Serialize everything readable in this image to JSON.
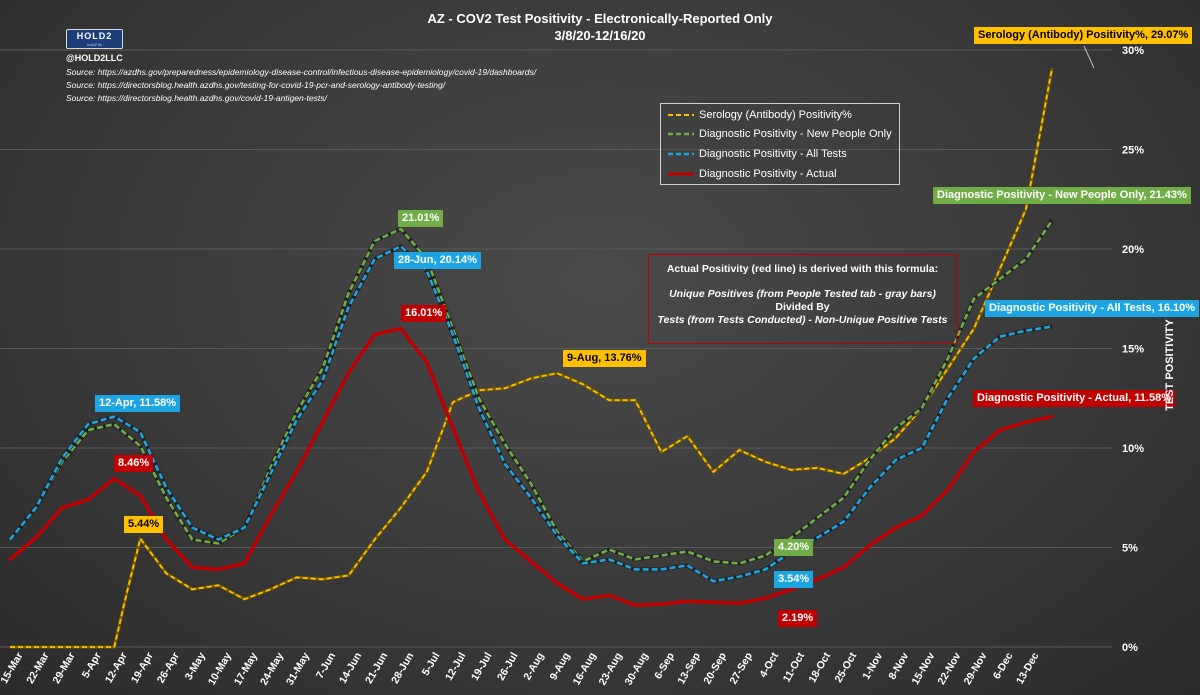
{
  "header": {
    "title_line1": "AZ - COV2 Test Positivity - Electronically-Reported Only",
    "title_line2": "3/8/20-12/16/20",
    "logo_text": "HOLD2",
    "logo_subtext": "hold2 llc",
    "handle": "@HOLD2LLC",
    "sources": [
      "Source: https://azdhs.gov/preparedness/epidemiology-disease-control/infectious-disease-epidemiology/covid-19/dashboards/",
      "Source: https://directorsblog.health.azdhs.gov/testing-for-covid-19-pcr-and-serology-antibody-testing/",
      "Source: https://directorsblog.health.azdhs.gov/covid-19-antigen-tests/"
    ]
  },
  "legend": {
    "items": [
      {
        "label": "Serology (Antibody) Positivity%",
        "color": "#ffc000",
        "dash": true
      },
      {
        "label": "Diagnostic Positivity - New People Only",
        "color": "#70ad47",
        "dash": true
      },
      {
        "label": "Diagnostic Positivity - All Tests",
        "color": "#1da4e2",
        "dash": true
      },
      {
        "label": "Diagnostic Positivity - Actual",
        "color": "#c00000",
        "dash": false
      }
    ]
  },
  "formula": {
    "heading": "Actual Positivity (red line) is derived with this formula:",
    "line1": "Unique Positives (from People Tested tab - gray bars)",
    "line2": "Divided By",
    "line3": "Tests (from Tests Conducted) - Non-Unique Positive Tests"
  },
  "callouts": {
    "serology_end": "Serology (Antibody) Positivity%, 29.07%",
    "new_people_end": "Diagnostic Positivity - New People Only, 21.43%",
    "all_tests_end": "Diagnostic Positivity - All Tests, 16.10%",
    "actual_end": "Diagnostic Positivity - Actual, 11.58%",
    "apr12": "12-Apr, 11.58%",
    "red_peak_apr": "8.46%",
    "serology_apr": "5.44%",
    "green_peak_jun": "21.01%",
    "blue_peak_jun": "28-Jun, 20.14%",
    "red_peak_jun": "16.01%",
    "serology_aug": "9-Aug, 13.76%",
    "green_sep": "4.20%",
    "blue_sep": "3.54%",
    "red_sep": "2.19%"
  },
  "colors": {
    "serology": "#ffc000",
    "new_people": "#70ad47",
    "all_tests": "#1da4e2",
    "actual": "#c00000",
    "grid": "#5a5a5a"
  },
  "chart_data": {
    "type": "line",
    "title": "AZ - COV2 Test Positivity - Electronically-Reported Only",
    "subtitle": "3/8/20-12/16/20",
    "xlabel": "",
    "ylabel": "TEST POSITIVITY",
    "ylim": [
      0,
      30
    ],
    "y_ticks": [
      0,
      5,
      10,
      15,
      20,
      25,
      30
    ],
    "y_tick_labels": [
      "0%",
      "5%",
      "10%",
      "15%",
      "20%",
      "25%",
      "30%"
    ],
    "grid": true,
    "legend_position": "top-center",
    "x_ticks": [
      "15-Mar",
      "22-Mar",
      "29-Mar",
      "5-Apr",
      "12-Apr",
      "19-Apr",
      "26-Apr",
      "3-May",
      "10-May",
      "17-May",
      "24-May",
      "31-May",
      "7-Jun",
      "14-Jun",
      "21-Jun",
      "28-Jun",
      "5-Jul",
      "12-Jul",
      "19-Jul",
      "26-Jul",
      "2-Aug",
      "9-Aug",
      "16-Aug",
      "23-Aug",
      "30-Aug",
      "6-Sep",
      "13-Sep",
      "20-Sep",
      "27-Sep",
      "4-Oct",
      "11-Oct",
      "18-Oct",
      "25-Oct",
      "1-Nov",
      "8-Nov",
      "15-Nov",
      "22-Nov",
      "29-Nov",
      "6-Dec",
      "13-Dec"
    ],
    "series": [
      {
        "name": "Serology (Antibody) Positivity%",
        "color": "#ffc000",
        "style": "dashed",
        "points": [
          [
            0,
            0
          ],
          [
            1,
            0
          ],
          [
            2,
            0
          ],
          [
            3,
            0
          ],
          [
            4,
            0
          ],
          [
            4.5,
            2.8
          ],
          [
            5,
            5.44
          ],
          [
            6,
            3.7
          ],
          [
            7,
            2.9
          ],
          [
            8,
            3.1
          ],
          [
            9,
            2.4
          ],
          [
            10,
            2.9
          ],
          [
            11,
            3.5
          ],
          [
            12,
            3.4
          ],
          [
            13,
            3.6
          ],
          [
            14,
            5.4
          ],
          [
            15,
            7.0
          ],
          [
            16,
            8.8
          ],
          [
            17,
            12.3
          ],
          [
            18,
            12.9
          ],
          [
            19,
            13.0
          ],
          [
            20,
            13.5
          ],
          [
            21,
            13.76
          ],
          [
            22,
            13.2
          ],
          [
            23,
            12.4
          ],
          [
            24,
            12.4
          ],
          [
            25,
            9.8
          ],
          [
            26,
            10.6
          ],
          [
            27,
            8.8
          ],
          [
            28,
            9.9
          ],
          [
            29,
            9.3
          ],
          [
            30,
            8.9
          ],
          [
            31,
            9.0
          ],
          [
            32,
            8.7
          ],
          [
            33,
            9.5
          ],
          [
            34,
            10.5
          ],
          [
            35,
            12.0
          ],
          [
            36,
            14.0
          ],
          [
            37,
            16.0
          ],
          [
            38,
            19.0
          ],
          [
            39,
            22.0
          ],
          [
            40,
            29.07
          ]
        ]
      },
      {
        "name": "Diagnostic Positivity - New People Only",
        "color": "#70ad47",
        "style": "dashed",
        "points": [
          [
            0,
            5.4
          ],
          [
            1,
            7.0
          ],
          [
            2,
            9.3
          ],
          [
            3,
            10.9
          ],
          [
            4,
            11.2
          ],
          [
            5,
            10.1
          ],
          [
            6,
            7.5
          ],
          [
            7,
            5.4
          ],
          [
            8,
            5.2
          ],
          [
            9,
            6.0
          ],
          [
            10,
            9.0
          ],
          [
            11,
            11.8
          ],
          [
            12,
            14.0
          ],
          [
            13,
            17.8
          ],
          [
            14,
            20.4
          ],
          [
            15,
            21.01
          ],
          [
            16,
            19.5
          ],
          [
            17,
            16.0
          ],
          [
            18,
            12.5
          ],
          [
            19,
            10.2
          ],
          [
            20,
            8.2
          ],
          [
            21,
            5.8
          ],
          [
            22,
            4.3
          ],
          [
            23,
            4.9
          ],
          [
            24,
            4.4
          ],
          [
            25,
            4.6
          ],
          [
            26,
            4.8
          ],
          [
            27,
            4.3
          ],
          [
            28,
            4.2
          ],
          [
            29,
            4.6
          ],
          [
            30,
            5.5
          ],
          [
            31,
            6.5
          ],
          [
            32,
            7.5
          ],
          [
            33,
            9.4
          ],
          [
            34,
            11.0
          ],
          [
            35,
            12.0
          ],
          [
            36,
            14.5
          ],
          [
            37,
            17.5
          ],
          [
            38,
            18.5
          ],
          [
            39,
            19.5
          ],
          [
            40,
            21.43
          ]
        ]
      },
      {
        "name": "Diagnostic Positivity - All Tests",
        "color": "#1da4e2",
        "style": "dashed",
        "points": [
          [
            0,
            5.4
          ],
          [
            1,
            7.0
          ],
          [
            2,
            9.5
          ],
          [
            3,
            11.2
          ],
          [
            4,
            11.58
          ],
          [
            5,
            10.8
          ],
          [
            6,
            8.0
          ],
          [
            7,
            6.0
          ],
          [
            8,
            5.4
          ],
          [
            9,
            6.0
          ],
          [
            10,
            8.7
          ],
          [
            11,
            11.4
          ],
          [
            12,
            13.4
          ],
          [
            13,
            17.1
          ],
          [
            14,
            19.5
          ],
          [
            15,
            20.14
          ],
          [
            16,
            18.9
          ],
          [
            17,
            15.7
          ],
          [
            18,
            12.0
          ],
          [
            19,
            9.2
          ],
          [
            20,
            7.5
          ],
          [
            21,
            5.6
          ],
          [
            22,
            4.2
          ],
          [
            23,
            4.4
          ],
          [
            24,
            3.9
          ],
          [
            25,
            3.9
          ],
          [
            26,
            4.1
          ],
          [
            27,
            3.3
          ],
          [
            28,
            3.54
          ],
          [
            29,
            3.9
          ],
          [
            30,
            4.8
          ],
          [
            31,
            5.5
          ],
          [
            32,
            6.3
          ],
          [
            33,
            8.0
          ],
          [
            34,
            9.4
          ],
          [
            35,
            10.0
          ],
          [
            36,
            12.5
          ],
          [
            37,
            14.5
          ],
          [
            38,
            15.6
          ],
          [
            39,
            15.9
          ],
          [
            40,
            16.1
          ]
        ]
      },
      {
        "name": "Diagnostic Positivity - Actual",
        "color": "#c00000",
        "style": "solid",
        "points": [
          [
            0,
            4.4
          ],
          [
            1,
            5.5
          ],
          [
            2,
            7.0
          ],
          [
            3,
            7.4
          ],
          [
            4,
            8.46
          ],
          [
            5,
            7.6
          ],
          [
            6,
            5.4
          ],
          [
            7,
            4.0
          ],
          [
            8,
            3.9
          ],
          [
            9,
            4.2
          ],
          [
            10,
            6.6
          ],
          [
            11,
            8.8
          ],
          [
            12,
            11.3
          ],
          [
            13,
            13.8
          ],
          [
            14,
            15.7
          ],
          [
            15,
            16.01
          ],
          [
            16,
            14.3
          ],
          [
            17,
            11.0
          ],
          [
            18,
            7.8
          ],
          [
            19,
            5.4
          ],
          [
            20,
            4.3
          ],
          [
            21,
            3.2
          ],
          [
            22,
            2.4
          ],
          [
            23,
            2.6
          ],
          [
            24,
            2.1
          ],
          [
            25,
            2.15
          ],
          [
            26,
            2.3
          ],
          [
            27,
            2.25
          ],
          [
            28,
            2.19
          ],
          [
            29,
            2.45
          ],
          [
            30,
            2.9
          ],
          [
            31,
            3.4
          ],
          [
            32,
            4.0
          ],
          [
            33,
            5.1
          ],
          [
            34,
            6.0
          ],
          [
            35,
            6.6
          ],
          [
            36,
            7.9
          ],
          [
            37,
            9.8
          ],
          [
            38,
            10.9
          ],
          [
            39,
            11.3
          ],
          [
            40,
            11.58
          ]
        ]
      }
    ]
  }
}
